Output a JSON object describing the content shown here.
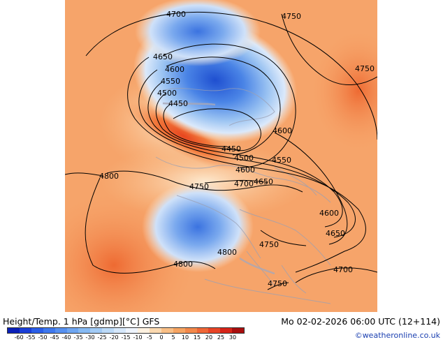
{
  "map": {
    "contour_labels": [
      "4700",
      "4750",
      "4750",
      "4650",
      "4600",
      "4550",
      "4500",
      "4450",
      "4450",
      "4500",
      "4550",
      "4600",
      "4600",
      "4700",
      "4650",
      "4800",
      "4750",
      "4600",
      "4650",
      "4800",
      "4750",
      "4800",
      "4700",
      "4750"
    ]
  },
  "footer": {
    "title_left": "Height/Temp. 1 hPa [gdmp][°C] GFS",
    "title_right": "Mo 02-02-2026 06:00 UTC (12+114)",
    "credit": "©weatheronline.co.uk",
    "scale_labels": [
      "-60",
      "-55",
      "-50",
      "-45",
      "-40",
      "-35",
      "-30",
      "-25",
      "-20",
      "-15",
      "-10",
      "-5",
      "0",
      "5",
      "10",
      "15",
      "20",
      "25",
      "30"
    ],
    "scale_colors": [
      "#0a1fb8",
      "#1a3fd8",
      "#2a5ee8",
      "#3e78ee",
      "#5690f0",
      "#6ea6f2",
      "#86baf4",
      "#a2cbf6",
      "#bcdaf8",
      "#d6e8fb",
      "#eef4fd",
      "#fdf1e0",
      "#fbd9b0",
      "#f9bf86",
      "#f6a462",
      "#f3884a",
      "#ef6636",
      "#e84426",
      "#d62418",
      "#a80e0e"
    ]
  }
}
